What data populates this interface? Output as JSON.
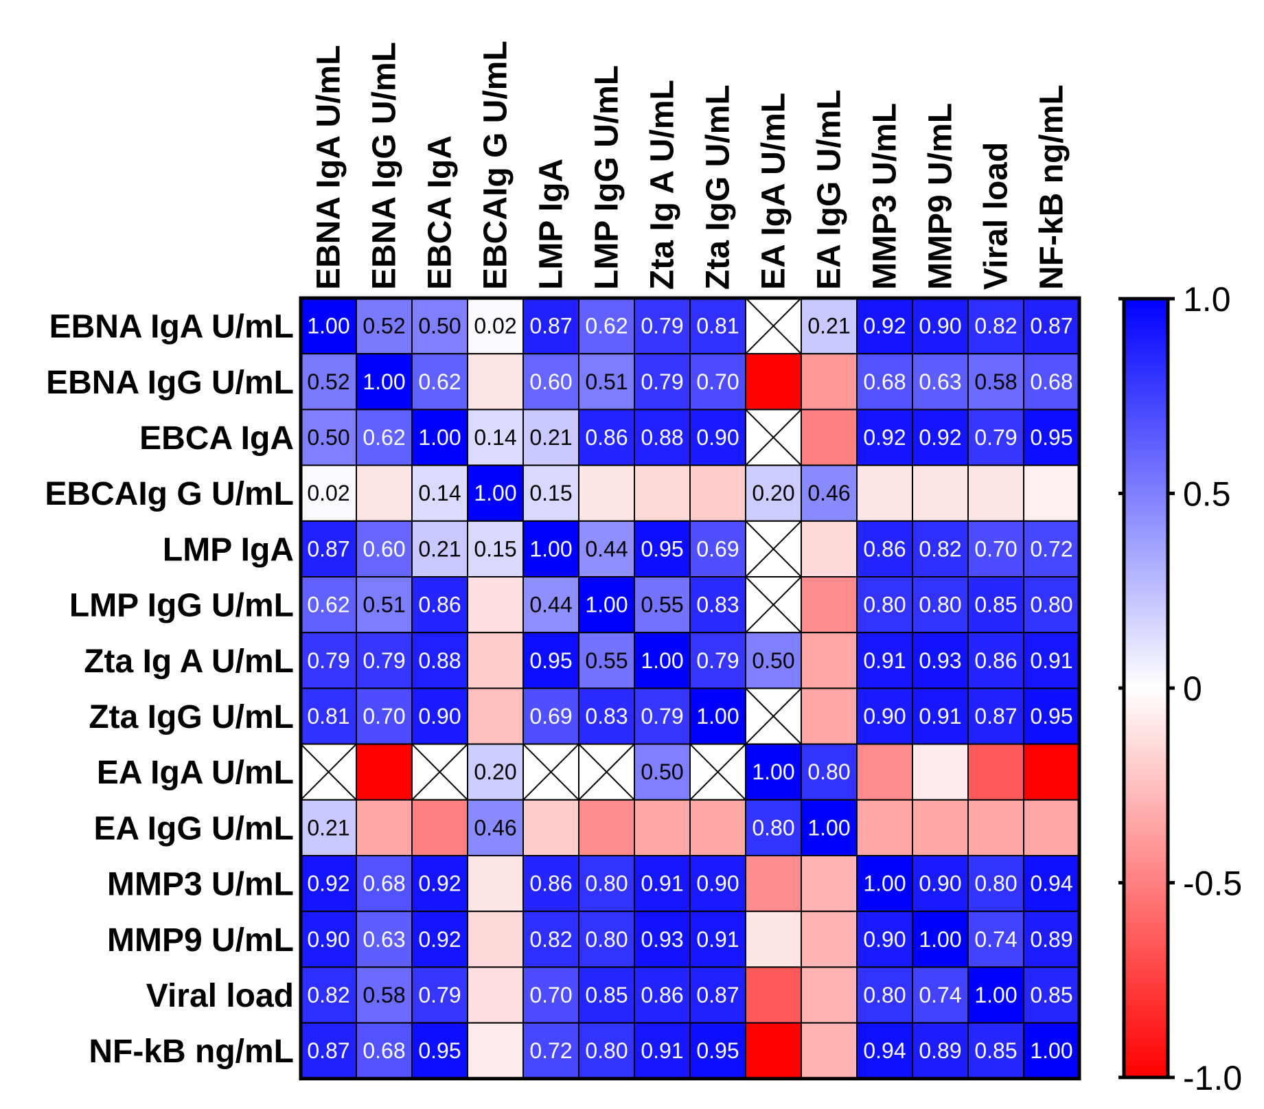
{
  "chart_data": {
    "type": "heatmap",
    "title": "",
    "labels": [
      "EBNA IgA U/mL",
      "EBNA IgG U/mL",
      "EBCA IgA",
      "EBCAIg G U/mL",
      "LMP IgA",
      "LMP IgG U/mL",
      "Zta Ig A U/mL",
      "Zta IgG U/mL",
      "EA IgA U/mL",
      "EA IgG U/mL",
      "MMP3 U/mL",
      "MMP9 U/mL",
      "Viral load",
      "NF-kB  ng/mL"
    ],
    "values": [
      [
        1.0,
        0.52,
        0.5,
        0.02,
        0.87,
        0.62,
        0.79,
        0.81,
        null,
        0.21,
        0.92,
        0.9,
        0.82,
        0.87
      ],
      [
        0.52,
        1.0,
        0.62,
        -0.1,
        0.6,
        0.51,
        0.79,
        0.7,
        -1.0,
        -0.4,
        0.68,
        0.63,
        0.58,
        0.68
      ],
      [
        0.5,
        0.62,
        1.0,
        0.14,
        0.21,
        0.86,
        0.88,
        0.9,
        null,
        -0.5,
        0.92,
        0.92,
        0.79,
        0.95
      ],
      [
        0.02,
        -0.1,
        0.14,
        1.0,
        0.15,
        -0.1,
        -0.15,
        -0.2,
        0.2,
        0.46,
        -0.1,
        -0.1,
        -0.1,
        -0.06
      ],
      [
        0.87,
        0.6,
        0.21,
        0.15,
        1.0,
        0.44,
        0.95,
        0.69,
        null,
        -0.15,
        0.86,
        0.82,
        0.7,
        0.72
      ],
      [
        0.62,
        0.51,
        0.86,
        -0.12,
        0.44,
        1.0,
        0.55,
        0.83,
        null,
        -0.45,
        0.8,
        0.8,
        0.85,
        0.8
      ],
      [
        0.79,
        0.79,
        0.88,
        -0.2,
        0.95,
        0.55,
        1.0,
        0.79,
        0.5,
        -0.35,
        0.91,
        0.93,
        0.86,
        0.91
      ],
      [
        0.81,
        0.7,
        0.9,
        -0.25,
        0.69,
        0.83,
        0.79,
        1.0,
        null,
        -0.35,
        0.9,
        0.91,
        0.87,
        0.95
      ],
      [
        null,
        -1.0,
        null,
        0.2,
        null,
        null,
        0.5,
        null,
        1.0,
        0.8,
        -0.45,
        -0.08,
        -0.65,
        -1.0
      ],
      [
        0.21,
        -0.35,
        -0.5,
        0.46,
        -0.2,
        -0.45,
        -0.35,
        -0.35,
        0.8,
        1.0,
        -0.35,
        -0.35,
        -0.35,
        -0.35
      ],
      [
        0.92,
        0.68,
        0.92,
        -0.1,
        0.86,
        0.8,
        0.91,
        0.9,
        -0.45,
        -0.3,
        1.0,
        0.9,
        0.8,
        0.94
      ],
      [
        0.9,
        0.63,
        0.92,
        -0.15,
        0.82,
        0.8,
        0.93,
        0.91,
        -0.1,
        -0.3,
        0.9,
        1.0,
        0.74,
        0.89
      ],
      [
        0.82,
        0.58,
        0.79,
        -0.12,
        0.7,
        0.85,
        0.86,
        0.87,
        -0.65,
        -0.3,
        0.8,
        0.74,
        1.0,
        0.85
      ],
      [
        0.87,
        0.68,
        0.95,
        -0.08,
        0.72,
        0.8,
        0.91,
        0.95,
        -1.0,
        -0.3,
        0.94,
        0.89,
        0.85,
        1.0
      ]
    ],
    "cell_labels": [
      [
        "1.00",
        "0.52",
        "0.50",
        "0.02",
        "0.87",
        "0.62",
        "0.79",
        "0.81",
        "",
        "0.21",
        "0.92",
        "0.90",
        "0.82",
        "0.87"
      ],
      [
        "0.52",
        "1.00",
        "0.62",
        "",
        "0.60",
        "0.51",
        "0.79",
        "0.70",
        "",
        "",
        "0.68",
        "0.63",
        "0.58",
        "0.68"
      ],
      [
        "0.50",
        "0.62",
        "1.00",
        "0.14",
        "0.21",
        "0.86",
        "0.88",
        "0.90",
        "",
        "",
        "0.92",
        "0.92",
        "0.79",
        "0.95"
      ],
      [
        "0.02",
        "",
        "0.14",
        "1.00",
        "0.15",
        "",
        "",
        "",
        "0.20",
        "0.46",
        "",
        "",
        "",
        ""
      ],
      [
        "0.87",
        "0.60",
        "0.21",
        "0.15",
        "1.00",
        "0.44",
        "0.95",
        "0.69",
        "",
        "",
        "0.86",
        "0.82",
        "0.70",
        "0.72"
      ],
      [
        "0.62",
        "0.51",
        "0.86",
        "",
        "0.44",
        "1.00",
        "0.55",
        "0.83",
        "",
        "",
        "0.80",
        "0.80",
        "0.85",
        "0.80"
      ],
      [
        "0.79",
        "0.79",
        "0.88",
        "",
        "0.95",
        "0.55",
        "1.00",
        "0.79",
        "0.50",
        "",
        "0.91",
        "0.93",
        "0.86",
        "0.91"
      ],
      [
        "0.81",
        "0.70",
        "0.90",
        "",
        "0.69",
        "0.83",
        "0.79",
        "1.00",
        "",
        "",
        "0.90",
        "0.91",
        "0.87",
        "0.95"
      ],
      [
        "",
        "",
        "",
        "0.20",
        "",
        "",
        "0.50",
        "",
        "1.00",
        "0.80",
        "",
        "",
        "",
        ""
      ],
      [
        "0.21",
        "",
        "",
        "0.46",
        "",
        "",
        "",
        "",
        "0.80",
        "1.00",
        "",
        "",
        "",
        ""
      ],
      [
        "0.92",
        "0.68",
        "0.92",
        "",
        "0.86",
        "0.80",
        "0.91",
        "0.90",
        "",
        "",
        "1.00",
        "0.90",
        "0.80",
        "0.94"
      ],
      [
        "0.90",
        "0.63",
        "0.92",
        "",
        "0.82",
        "0.80",
        "0.93",
        "0.91",
        "",
        "",
        "0.90",
        "1.00",
        "0.74",
        "0.89"
      ],
      [
        "0.82",
        "0.58",
        "0.79",
        "",
        "0.70",
        "0.85",
        "0.86",
        "0.87",
        "",
        "",
        "0.80",
        "0.74",
        "1.00",
        "0.85"
      ],
      [
        "0.87",
        "0.68",
        "0.95",
        "",
        "0.72",
        "0.80",
        "0.91",
        "0.95",
        "",
        "",
        "0.94",
        "0.89",
        "0.85",
        "1.00"
      ]
    ],
    "missing_marker": "crossed-box",
    "colorbar": {
      "range": [
        -1.0,
        1.0
      ],
      "ticks": [
        1.0,
        0.5,
        0,
        -0.5,
        -1.0
      ],
      "tick_labels": [
        "1.0",
        "0.5",
        "0",
        "-0.5",
        "-1.0"
      ],
      "low_color": "#ff0000",
      "mid_color": "#ffffff",
      "high_color": "#0000ff",
      "placement": "right"
    }
  }
}
